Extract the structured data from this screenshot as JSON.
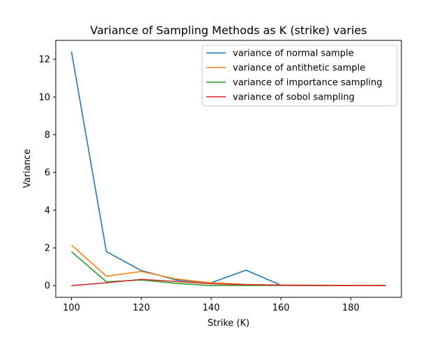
{
  "chart_data": {
    "type": "line",
    "title": "Variance of Sampling Methods as K (strike) varies",
    "xlabel": "Strike (K)",
    "ylabel": "Variance",
    "xlim": [
      95.5,
      194.5
    ],
    "ylim": [
      -0.62,
      13.0
    ],
    "xticks": [
      100,
      120,
      140,
      160,
      180
    ],
    "yticks": [
      0,
      2,
      4,
      6,
      8,
      10,
      12
    ],
    "grid": false,
    "legend_position": "top-right",
    "x": [
      100,
      110,
      120,
      130,
      140,
      150,
      160,
      170,
      180,
      190
    ],
    "series": [
      {
        "name": "variance of normal sample",
        "color": "#1f77b4",
        "values": [
          12.4,
          1.8,
          0.8,
          0.3,
          0.15,
          0.82,
          0.02,
          0.02,
          0.01,
          0.01
        ]
      },
      {
        "name": "variance of antithetic sample",
        "color": "#ff7f0e",
        "values": [
          2.15,
          0.5,
          0.75,
          0.35,
          0.15,
          0.06,
          0.03,
          0.02,
          0.01,
          0.01
        ]
      },
      {
        "name": "variance of importance sampling",
        "color": "#2ca02c",
        "values": [
          1.8,
          0.2,
          0.3,
          0.12,
          0.0,
          0.01,
          0.01,
          0.0,
          0.0,
          0.0
        ]
      },
      {
        "name": "variance of sobol sampling",
        "color": "#d62728",
        "values": [
          0.0,
          0.15,
          0.33,
          0.22,
          0.1,
          0.05,
          0.02,
          0.01,
          0.0,
          0.0
        ]
      }
    ]
  }
}
